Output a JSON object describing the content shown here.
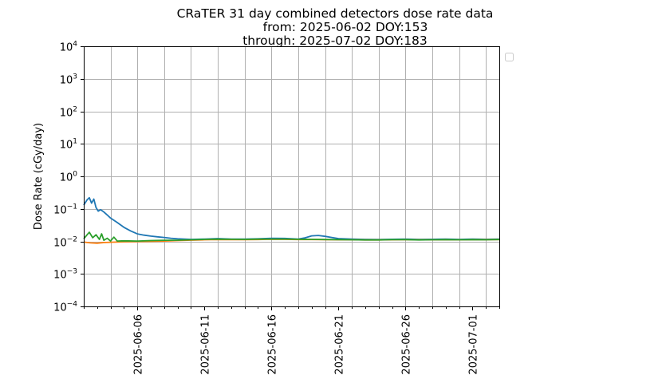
{
  "chart_data": {
    "type": "line",
    "title_lines": [
      "CRaTER 31 day combined detectors dose rate data",
      "from: 2025-06-02 DOY:153",
      "through: 2025-07-02 DOY:183"
    ],
    "xlabel": "",
    "ylabel": "Dose Rate (cGy/day)",
    "yscale": "log",
    "ylim": [
      0.0001,
      10000
    ],
    "xlim": [
      "2025-06-02",
      "2025-07-03"
    ],
    "y_ticks": [
      {
        "value": 0.0001,
        "base": "10",
        "exp": "−4"
      },
      {
        "value": 0.001,
        "base": "10",
        "exp": "−3"
      },
      {
        "value": 0.01,
        "base": "10",
        "exp": "−2"
      },
      {
        "value": 0.1,
        "base": "10",
        "exp": "−1"
      },
      {
        "value": 1,
        "base": "10",
        "exp": "0"
      },
      {
        "value": 10,
        "base": "10",
        "exp": "1"
      },
      {
        "value": 100,
        "base": "10",
        "exp": "2"
      },
      {
        "value": 1000,
        "base": "10",
        "exp": "3"
      },
      {
        "value": 10000,
        "base": "10",
        "exp": "4"
      }
    ],
    "x_tick_labels": [
      {
        "date": "2025-06-06",
        "label": "2025-06-06"
      },
      {
        "date": "2025-06-11",
        "label": "2025-06-11"
      },
      {
        "date": "2025-06-16",
        "label": "2025-06-16"
      },
      {
        "date": "2025-06-21",
        "label": "2025-06-21"
      },
      {
        "date": "2025-06-26",
        "label": "2025-06-26"
      },
      {
        "date": "2025-07-01",
        "label": "2025-07-01"
      }
    ],
    "x_gridlines": [
      "2025-06-04",
      "2025-06-06",
      "2025-06-08",
      "2025-06-10",
      "2025-06-12",
      "2025-06-14",
      "2025-06-16",
      "2025-06-18",
      "2025-06-20",
      "2025-06-22",
      "2025-06-24",
      "2025-06-26",
      "2025-06-28",
      "2025-06-30",
      "2025-07-02"
    ],
    "grid": true,
    "legend": "empty, outside upper-right",
    "series": [
      {
        "color": "#1f77b4",
        "points": [
          [
            "2025-06-02",
            0.13
          ],
          [
            "2025-06-02T06:00",
            0.19
          ],
          [
            "2025-06-02T10:00",
            0.22
          ],
          [
            "2025-06-02T14:00",
            0.15
          ],
          [
            "2025-06-02T18:00",
            0.2
          ],
          [
            "2025-06-02T22:00",
            0.11
          ],
          [
            "2025-06-03T02:00",
            0.085
          ],
          [
            "2025-06-03T06:00",
            0.095
          ],
          [
            "2025-06-03T12:00",
            0.08
          ],
          [
            "2025-06-03T18:00",
            0.065
          ],
          [
            "2025-06-04",
            0.052
          ],
          [
            "2025-06-04T12:00",
            0.038
          ],
          [
            "2025-06-05",
            0.027
          ],
          [
            "2025-06-05T12:00",
            0.021
          ],
          [
            "2025-06-06",
            0.017
          ],
          [
            "2025-06-06T12:00",
            0.0155
          ],
          [
            "2025-06-07",
            0.0145
          ],
          [
            "2025-06-07T12:00",
            0.0138
          ],
          [
            "2025-06-08",
            0.0132
          ],
          [
            "2025-06-08T12:00",
            0.0125
          ],
          [
            "2025-06-09",
            0.012
          ],
          [
            "2025-06-10",
            0.0115
          ],
          [
            "2025-06-11",
            0.0118
          ],
          [
            "2025-06-12",
            0.0122
          ],
          [
            "2025-06-13",
            0.0118
          ],
          [
            "2025-06-14",
            0.0117
          ],
          [
            "2025-06-15",
            0.012
          ],
          [
            "2025-06-16",
            0.0125
          ],
          [
            "2025-06-17",
            0.0123
          ],
          [
            "2025-06-18",
            0.0118
          ],
          [
            "2025-06-18T12:00",
            0.0128
          ],
          [
            "2025-06-19",
            0.0148
          ],
          [
            "2025-06-19T12:00",
            0.0152
          ],
          [
            "2025-06-20",
            0.0143
          ],
          [
            "2025-06-20T12:00",
            0.0132
          ],
          [
            "2025-06-21",
            0.0122
          ],
          [
            "2025-06-22",
            0.0118
          ],
          [
            "2025-06-23",
            0.0115
          ],
          [
            "2025-06-24",
            0.0114
          ],
          [
            "2025-06-25",
            0.0116
          ],
          [
            "2025-06-26",
            0.0118
          ],
          [
            "2025-06-27",
            0.0115
          ],
          [
            "2025-06-28",
            0.0116
          ],
          [
            "2025-06-29",
            0.0117
          ],
          [
            "2025-06-30",
            0.0115
          ],
          [
            "2025-07-01",
            0.0117
          ],
          [
            "2025-07-02",
            0.0116
          ],
          [
            "2025-07-03",
            0.0117
          ]
        ]
      },
      {
        "color": "#ff7f0e",
        "points": [
          [
            "2025-06-02",
            0.0095
          ],
          [
            "2025-06-02T12:00",
            0.009
          ],
          [
            "2025-06-03",
            0.0088
          ],
          [
            "2025-06-03T12:00",
            0.0092
          ],
          [
            "2025-06-04",
            0.0094
          ],
          [
            "2025-06-05",
            0.0097
          ],
          [
            "2025-06-06",
            0.0099
          ],
          [
            "2025-06-07",
            0.01
          ],
          [
            "2025-06-08",
            0.0102
          ],
          [
            "2025-06-09",
            0.0106
          ],
          [
            "2025-06-10",
            0.0109
          ],
          [
            "2025-06-11",
            0.0112
          ],
          [
            "2025-06-12",
            0.0114
          ],
          [
            "2025-06-13",
            0.0113
          ],
          [
            "2025-06-14",
            0.0113
          ],
          [
            "2025-06-15",
            0.0114
          ],
          [
            "2025-06-16",
            0.0116
          ],
          [
            "2025-06-17",
            0.0115
          ],
          [
            "2025-06-18",
            0.0114
          ],
          [
            "2025-06-19",
            0.0114
          ],
          [
            "2025-06-20",
            0.0113
          ],
          [
            "2025-06-21",
            0.0112
          ],
          [
            "2025-06-22",
            0.0112
          ],
          [
            "2025-06-23",
            0.0111
          ],
          [
            "2025-06-24",
            0.0111
          ],
          [
            "2025-06-25",
            0.0112
          ],
          [
            "2025-06-26",
            0.0113
          ],
          [
            "2025-06-27",
            0.0112
          ],
          [
            "2025-06-28",
            0.0112
          ],
          [
            "2025-06-29",
            0.0113
          ],
          [
            "2025-06-30",
            0.0112
          ],
          [
            "2025-07-01",
            0.0113
          ],
          [
            "2025-07-02",
            0.0113
          ],
          [
            "2025-07-03",
            0.0114
          ]
        ]
      },
      {
        "color": "#2ca02c",
        "points": [
          [
            "2025-06-02",
            0.012
          ],
          [
            "2025-06-02T06:00",
            0.016
          ],
          [
            "2025-06-02T10:00",
            0.019
          ],
          [
            "2025-06-02T16:00",
            0.013
          ],
          [
            "2025-06-02T22:00",
            0.016
          ],
          [
            "2025-06-03T04:00",
            0.0115
          ],
          [
            "2025-06-03T08:00",
            0.017
          ],
          [
            "2025-06-03T12:00",
            0.0108
          ],
          [
            "2025-06-03T18:00",
            0.0125
          ],
          [
            "2025-06-04",
            0.0102
          ],
          [
            "2025-06-04T06:00",
            0.0135
          ],
          [
            "2025-06-04T12:00",
            0.0102
          ],
          [
            "2025-06-05",
            0.0104
          ],
          [
            "2025-06-06",
            0.0102
          ],
          [
            "2025-06-07",
            0.0106
          ],
          [
            "2025-06-08",
            0.0108
          ],
          [
            "2025-06-09",
            0.0109
          ],
          [
            "2025-06-10",
            0.0112
          ],
          [
            "2025-06-11",
            0.0115
          ],
          [
            "2025-06-12",
            0.0117
          ],
          [
            "2025-06-13",
            0.0116
          ],
          [
            "2025-06-14",
            0.0115
          ],
          [
            "2025-06-15",
            0.0117
          ],
          [
            "2025-06-16",
            0.0118
          ],
          [
            "2025-06-17",
            0.0118
          ],
          [
            "2025-06-18",
            0.0116
          ],
          [
            "2025-06-19",
            0.0115
          ],
          [
            "2025-06-20",
            0.0114
          ],
          [
            "2025-06-21",
            0.0113
          ],
          [
            "2025-06-22",
            0.0112
          ],
          [
            "2025-06-23",
            0.0111
          ],
          [
            "2025-06-24",
            0.0111
          ],
          [
            "2025-06-25",
            0.0113
          ],
          [
            "2025-06-26",
            0.0113
          ],
          [
            "2025-06-27",
            0.0111
          ],
          [
            "2025-06-28",
            0.0112
          ],
          [
            "2025-06-29",
            0.0113
          ],
          [
            "2025-06-30",
            0.0112
          ],
          [
            "2025-07-01",
            0.0113
          ],
          [
            "2025-07-02",
            0.0112
          ],
          [
            "2025-07-03",
            0.0114
          ]
        ]
      }
    ]
  }
}
